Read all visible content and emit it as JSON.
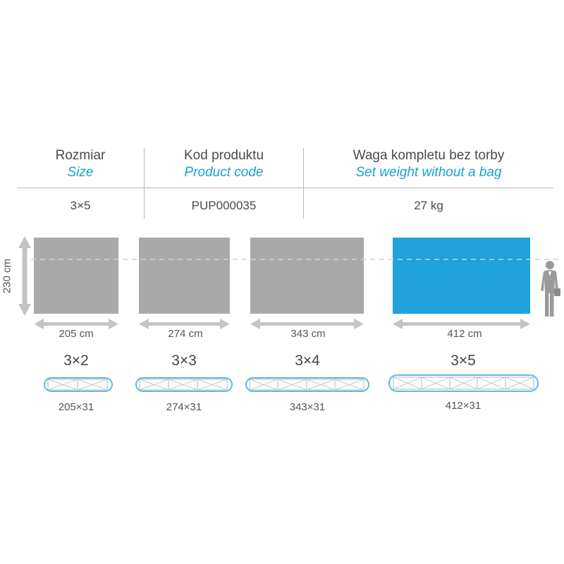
{
  "table": {
    "columns": [
      {
        "label": "Rozmiar",
        "sublabel": "Size"
      },
      {
        "label": "Kod produktu",
        "sublabel": "Product code"
      },
      {
        "label": "Waga kompletu bez torby",
        "sublabel": "Set weight without a bag"
      }
    ],
    "row": [
      "3×5",
      "PUP000035",
      "27 kg"
    ]
  },
  "diagram": {
    "height_label": "230 cm",
    "walls": [
      {
        "model": "3×2",
        "width_label": "205 cm",
        "frame_spec": "205×31",
        "highlighted": false,
        "frame_segments": 2
      },
      {
        "model": "3×3",
        "width_label": "274 cm",
        "frame_spec": "274×31",
        "highlighted": false,
        "frame_segments": 3
      },
      {
        "model": "3×4",
        "width_label": "343 cm",
        "frame_spec": "343×31",
        "highlighted": false,
        "frame_segments": 4
      },
      {
        "model": "3×5",
        "width_label": "412 cm",
        "frame_spec": "412×31",
        "highlighted": true,
        "frame_segments": 5
      }
    ],
    "colors": {
      "panel_gray": "#a9a9a9",
      "panel_blue": "#1fa3da",
      "accent_text": "#1aa0d2",
      "frame_stroke": "#5bbde3"
    },
    "icons": [
      "person-silhouette-icon"
    ]
  }
}
